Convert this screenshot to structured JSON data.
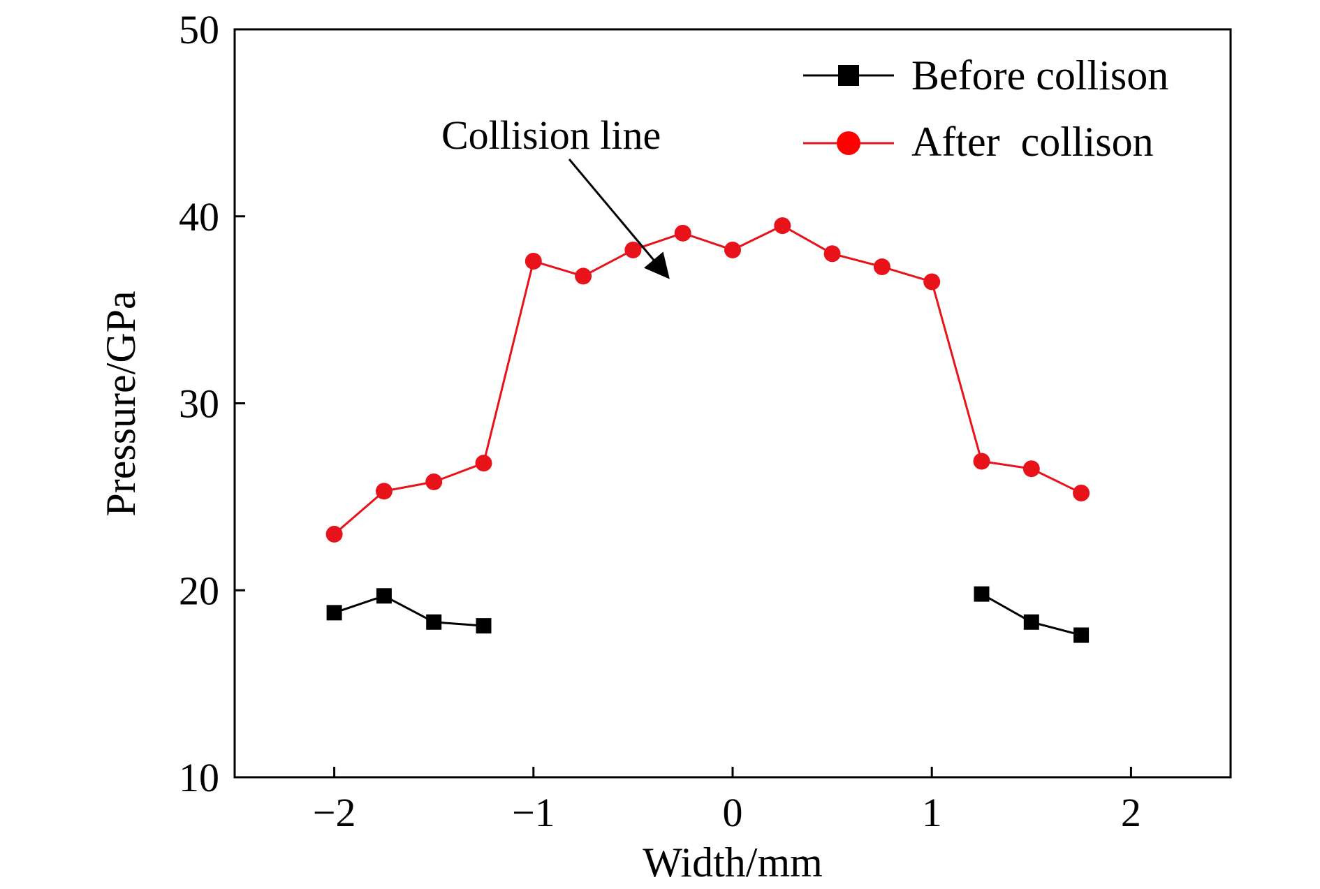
{
  "chart_data": {
    "type": "line",
    "xlabel": "Width/mm",
    "ylabel": "Pressure/GPa",
    "xlim": [
      -2.5,
      2.5
    ],
    "ylim": [
      10,
      50
    ],
    "xticks": [
      -2,
      -1,
      0,
      1,
      2
    ],
    "xtick_labels": [
      "−2",
      "−1",
      "0",
      "1",
      "2"
    ],
    "yticks": [
      10,
      20,
      30,
      40,
      50
    ],
    "ytick_labels": [
      "10",
      "20",
      "30",
      "40",
      "50"
    ],
    "grid": false,
    "legend_position": "top-right",
    "series": [
      {
        "name": "Before collison",
        "color": "#000000",
        "marker": "square",
        "segments": [
          {
            "x": [
              -2,
              -1.75,
              -1.5,
              -1.25
            ],
            "y": [
              18.8,
              19.7,
              18.3,
              18.1
            ]
          },
          {
            "x": [
              1.25,
              1.5,
              1.75
            ],
            "y": [
              19.8,
              18.3,
              17.6
            ]
          }
        ]
      },
      {
        "name": "After  collison",
        "color": "#e8121a",
        "marker": "circle",
        "segments": [
          {
            "x": [
              -2,
              -1.75,
              -1.5,
              -1.25,
              -1,
              -0.75,
              -0.5,
              -0.25,
              0,
              0.25,
              0.5,
              0.75,
              1,
              1.25,
              1.5,
              1.75
            ],
            "y": [
              23.0,
              25.3,
              25.8,
              26.8,
              37.6,
              36.8,
              38.2,
              39.1,
              38.2,
              39.5,
              38.0,
              37.3,
              36.5,
              26.9,
              26.5,
              25.2
            ]
          }
        ]
      }
    ],
    "annotations": [
      {
        "text": "Collision line",
        "arrow": true
      }
    ]
  }
}
